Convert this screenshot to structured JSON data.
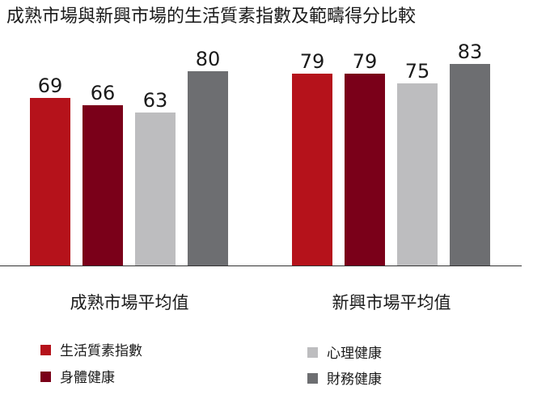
{
  "chart_data": {
    "type": "bar",
    "title": "成熟市場與新興市場的生活質素指數及範疇得分比較",
    "categories": [
      "成熟市場平均值",
      "新興市場平均值"
    ],
    "series": [
      {
        "name": "生活質素指數",
        "values": [
          69,
          79
        ],
        "color": "#b5121b"
      },
      {
        "name": "身體健康",
        "values": [
          66,
          79
        ],
        "color": "#7a0019"
      },
      {
        "name": "心理健康",
        "values": [
          63,
          75
        ],
        "color": "#bdbdbf"
      },
      {
        "name": "財務健康",
        "values": [
          80,
          83
        ],
        "color": "#6d6e71"
      }
    ],
    "ylim": [
      0,
      100
    ],
    "grid": false,
    "legend_position": "bottom"
  }
}
